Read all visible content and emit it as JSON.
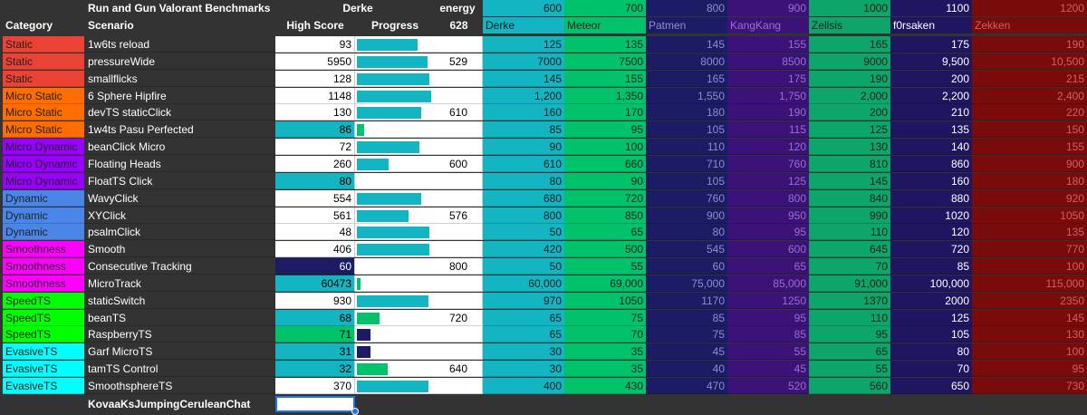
{
  "header1": {
    "title": "Run and Gun Valorant Benchmarks",
    "player": "Derke",
    "energy_label": "energy",
    "thresholds": [
      "600",
      "700",
      "800",
      "900",
      "1000",
      "1100",
      "1200"
    ]
  },
  "header2": {
    "category": "Category",
    "scenario": "Scenario",
    "high_score": "High Score",
    "progress": "Progress",
    "energy_value": "628",
    "ranks": [
      "Derke",
      "Meteor",
      "Patmen",
      "KangKang",
      "Zellsis",
      "f0rsaken",
      "Zekken"
    ]
  },
  "colors": {
    "categories": {
      "Static": "#ea4335",
      "Micro Static": "#ff6d01",
      "Micro Dynamic": "#9900ff",
      "Dynamic": "#4a86e8",
      "Smoothness": "#ff00ff",
      "SpeedTS": "#00ff00",
      "EvasiveTS": "#00ffff"
    },
    "ranks": [
      "#12b5c1",
      "#00c26b",
      "#1c1c66",
      "#3a1278",
      "#0ea56a",
      "#1f1560",
      "#7a0b0b"
    ],
    "rank_text": [
      "#222222",
      "#222222",
      "#8e8ec6",
      "#9b70c8",
      "#222222",
      "#ffffff",
      "#d06060"
    ],
    "hs_fill": {
      "Derke": "#12b5c1",
      "Meteor": "#00c26b",
      "Patmen": "#1c1c66"
    }
  },
  "rows": [
    {
      "category": "Static",
      "scenario": "1w6ts reload",
      "high_score": "93",
      "progress": 0.82,
      "bar_color": "#12b5c1",
      "energy": "",
      "ranks": [
        "125",
        "135",
        "145",
        "155",
        "165",
        "175",
        "190"
      ]
    },
    {
      "category": "Static",
      "scenario": "pressureWide",
      "high_score": "5950",
      "progress": 0.95,
      "bar_color": "#12b5c1",
      "energy": "529",
      "ranks": [
        "7000",
        "7500",
        "8000",
        "8500",
        "9000",
        "9,500",
        "10,500"
      ]
    },
    {
      "category": "Static",
      "scenario": "smallflicks",
      "high_score": "128",
      "progress": 0.98,
      "bar_color": "#12b5c1",
      "energy": "",
      "ranks": [
        "145",
        "155",
        "165",
        "175",
        "190",
        "200",
        "215"
      ]
    },
    {
      "category": "Micro Static",
      "scenario": "6 Sphere Hipfire",
      "high_score": "1148",
      "progress": 1.0,
      "bar_color": "#12b5c1",
      "energy": "",
      "ranks": [
        "1,200",
        "1,350",
        "1,550",
        "1,750",
        "2,000",
        "2,200",
        "2,400"
      ]
    },
    {
      "category": "Micro Static",
      "scenario": "devTS staticClick",
      "high_score": "130",
      "progress": 0.87,
      "bar_color": "#12b5c1",
      "energy": "610",
      "ranks": [
        "160",
        "170",
        "180",
        "190",
        "200",
        "210",
        "220"
      ]
    },
    {
      "category": "Micro Static",
      "scenario": "1w4ts Pasu Perfected",
      "high_score": "86",
      "progress": 0.1,
      "bar_color": "#00c26b",
      "hs_fill": "Derke",
      "energy": "",
      "ranks": [
        "85",
        "95",
        "105",
        "115",
        "125",
        "135",
        "150"
      ]
    },
    {
      "category": "Micro Dynamic",
      "scenario": "beanClick Micro",
      "high_score": "72",
      "progress": 0.84,
      "bar_color": "#12b5c1",
      "energy": "",
      "ranks": [
        "90",
        "100",
        "110",
        "120",
        "130",
        "140",
        "155"
      ]
    },
    {
      "category": "Micro Dynamic",
      "scenario": "Floating Heads",
      "high_score": "260",
      "progress": 0.43,
      "bar_color": "#12b5c1",
      "energy": "600",
      "ranks": [
        "610",
        "660",
        "710",
        "760",
        "810",
        "860",
        "900"
      ]
    },
    {
      "category": "Micro Dynamic",
      "scenario": "FloatTS Click",
      "high_score": "80",
      "progress": 0.0,
      "bar_color": "#12b5c1",
      "hs_fill": "Derke",
      "energy": "",
      "ranks": [
        "80",
        "90",
        "105",
        "125",
        "145",
        "160",
        "180"
      ]
    },
    {
      "category": "Dynamic",
      "scenario": "WavyClick",
      "high_score": "554",
      "progress": 0.86,
      "bar_color": "#12b5c1",
      "energy": "",
      "ranks": [
        "680",
        "720",
        "760",
        "800",
        "840",
        "880",
        "920"
      ]
    },
    {
      "category": "Dynamic",
      "scenario": "XYClick",
      "high_score": "561",
      "progress": 0.7,
      "bar_color": "#12b5c1",
      "energy": "576",
      "ranks": [
        "800",
        "850",
        "900",
        "950",
        "990",
        "1020",
        "1050"
      ]
    },
    {
      "category": "Dynamic",
      "scenario": "psalmClick",
      "high_score": "48",
      "progress": 0.98,
      "bar_color": "#12b5c1",
      "energy": "",
      "ranks": [
        "50",
        "65",
        "80",
        "95",
        "110",
        "120",
        "135"
      ]
    },
    {
      "category": "Smoothness",
      "scenario": "Smooth",
      "high_score": "406",
      "progress": 0.97,
      "bar_color": "#12b5c1",
      "energy": "",
      "ranks": [
        "420",
        "500",
        "545",
        "600",
        "645",
        "720",
        "770"
      ]
    },
    {
      "category": "Smoothness",
      "scenario": "Consecutive Tracking",
      "high_score": "60",
      "progress": 0.0,
      "bar_color": "#12b5c1",
      "hs_fill": "Patmen",
      "energy": "800",
      "ranks": [
        "50",
        "55",
        "60",
        "65",
        "70",
        "85",
        "100"
      ]
    },
    {
      "category": "Smoothness",
      "scenario": "MicroTrack",
      "high_score": "60473",
      "progress": 0.05,
      "bar_color": "#00c26b",
      "hs_fill": "Derke",
      "energy": "",
      "ranks": [
        "60,000",
        "69,000",
        "75,000",
        "85,000",
        "91,000",
        "100,000",
        "115,000"
      ]
    },
    {
      "category": "SpeedTS",
      "scenario": "staticSwitch",
      "high_score": "930",
      "progress": 0.96,
      "bar_color": "#12b5c1",
      "energy": "",
      "ranks": [
        "970",
        "1050",
        "1170",
        "1250",
        "1370",
        "2000",
        "2350"
      ]
    },
    {
      "category": "SpeedTS",
      "scenario": "beanTS",
      "high_score": "68",
      "progress": 0.3,
      "bar_color": "#00c26b",
      "hs_fill": "Derke",
      "energy": "720",
      "ranks": [
        "65",
        "75",
        "85",
        "95",
        "110",
        "125",
        "145"
      ]
    },
    {
      "category": "SpeedTS",
      "scenario": "RaspberryTS",
      "high_score": "71",
      "progress": 0.18,
      "bar_color": "#1c1c66",
      "hs_fill": "Meteor",
      "energy": "",
      "ranks": [
        "65",
        "70",
        "75",
        "85",
        "95",
        "105",
        "130"
      ]
    },
    {
      "category": "EvasiveTS",
      "scenario": "Garf MicroTS",
      "high_score": "31",
      "progress": 0.18,
      "bar_color": "#1c1c66",
      "hs_fill": "Derke",
      "energy": "",
      "ranks": [
        "30",
        "35",
        "45",
        "55",
        "65",
        "80",
        "100"
      ]
    },
    {
      "category": "EvasiveTS",
      "scenario": "tamTS Control",
      "high_score": "32",
      "progress": 0.42,
      "bar_color": "#00c26b",
      "hs_fill": "Derke",
      "energy": "640",
      "ranks": [
        "30",
        "35",
        "40",
        "45",
        "55",
        "70",
        "95"
      ]
    },
    {
      "category": "EvasiveTS",
      "scenario": "SmoothsphereTS",
      "high_score": "370",
      "progress": 0.96,
      "bar_color": "#12b5c1",
      "energy": "",
      "ranks": [
        "400",
        "430",
        "470",
        "520",
        "560",
        "650",
        "730"
      ]
    }
  ],
  "footer": {
    "scenario": "KovaaKsJumpingCeruleanChat"
  }
}
